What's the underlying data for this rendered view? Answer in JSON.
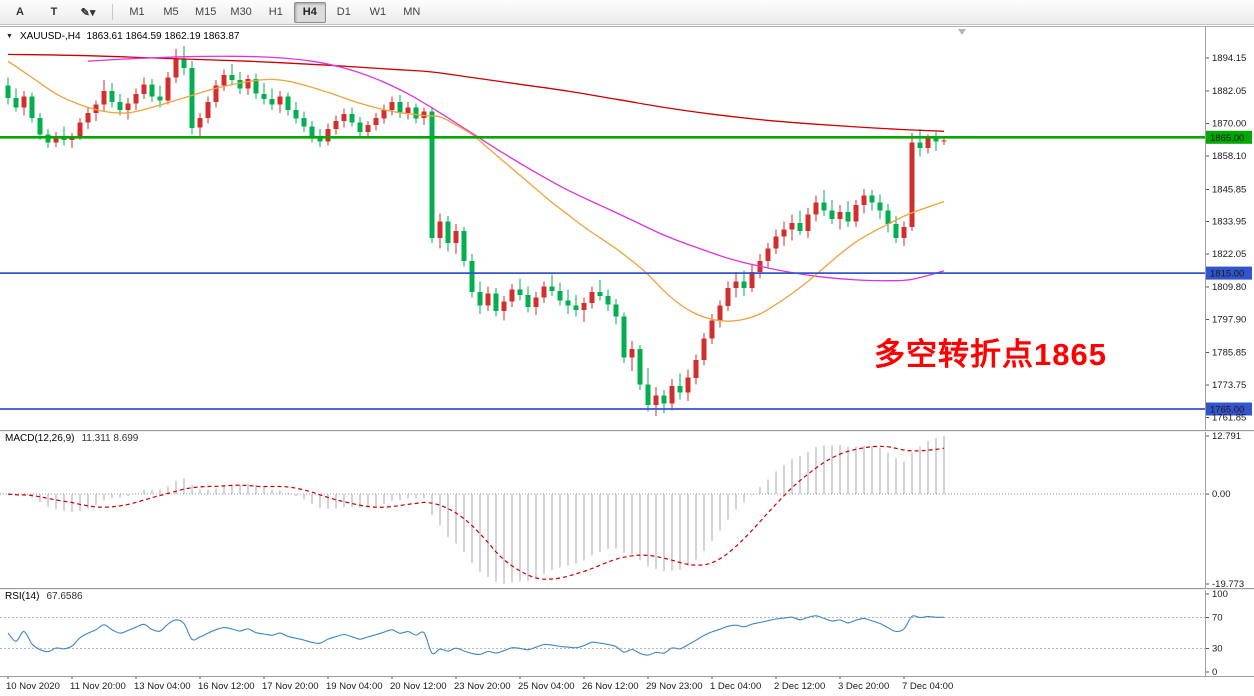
{
  "toolbar": {
    "tool_buttons": [
      {
        "id": "arrow-tool",
        "label": "A"
      },
      {
        "id": "text-tool",
        "label": "T"
      },
      {
        "id": "draw-tool",
        "label": "✎",
        "dropdown": "▾"
      }
    ],
    "timeframes": [
      "M1",
      "M5",
      "M15",
      "M30",
      "H1",
      "H4",
      "D1",
      "W1",
      "MN"
    ],
    "active_timeframe": "H4"
  },
  "header": {
    "collapse_arrow": "▼",
    "symbol": "XAUUSD-,H4",
    "ohlc": "1863.61 1864.59 1862.19 1863.87"
  },
  "annotation": {
    "text": "多空转折点1865",
    "color": "#ff0000"
  },
  "chart_data": {
    "type": "candlestick",
    "symbol": "XAUUSD-",
    "timeframe": "H4",
    "price_axis": {
      "min": 1758,
      "max": 1903,
      "ticks": [
        1894.15,
        1882.05,
        1870.0,
        1858.1,
        1845.85,
        1833.95,
        1822.05,
        1809.8,
        1797.9,
        1785.85,
        1773.75,
        1761.85
      ]
    },
    "hlines": [
      {
        "price": 1865.0,
        "label": "1865.00",
        "color": "#00a800",
        "text_color": "#000000",
        "width": 2.6
      },
      {
        "price": 1815.0,
        "label": "1815.00",
        "color": "#3355cc",
        "text_color": "#ffffff",
        "width": 1.8
      },
      {
        "price": 1765.0,
        "label": "1765.00",
        "color": "#3355cc",
        "text_color": "#ffffff",
        "width": 1.8
      }
    ],
    "candles": [
      [
        1884.0,
        1887.0,
        1877.0,
        1879.5
      ],
      [
        1879.5,
        1883.0,
        1874.5,
        1876.0
      ],
      [
        1876.0,
        1882.0,
        1873.0,
        1880.0
      ],
      [
        1880.0,
        1881.5,
        1870.5,
        1872.0
      ],
      [
        1872.0,
        1874.0,
        1864.0,
        1866.0
      ],
      [
        1866.0,
        1868.0,
        1861.0,
        1863.0
      ],
      [
        1863.0,
        1867.0,
        1861.5,
        1865.0
      ],
      [
        1865.0,
        1869.0,
        1862.0,
        1864.0
      ],
      [
        1864.0,
        1866.5,
        1861.0,
        1865.5
      ],
      [
        1865.5,
        1872.0,
        1864.0,
        1870.5
      ],
      [
        1870.5,
        1876.0,
        1868.0,
        1874.0
      ],
      [
        1874.0,
        1878.5,
        1871.0,
        1877.0
      ],
      [
        1877.0,
        1886.0,
        1874.5,
        1882.0
      ],
      [
        1882.0,
        1885.0,
        1876.0,
        1878.0
      ],
      [
        1878.0,
        1881.0,
        1873.0,
        1875.0
      ],
      [
        1875.0,
        1879.5,
        1871.5,
        1877.5
      ],
      [
        1877.5,
        1883.0,
        1875.0,
        1881.0
      ],
      [
        1881.0,
        1887.0,
        1879.0,
        1884.5
      ],
      [
        1884.5,
        1886.5,
        1878.0,
        1880.0
      ],
      [
        1880.0,
        1884.0,
        1876.0,
        1878.5
      ],
      [
        1878.5,
        1889.0,
        1877.0,
        1887.0
      ],
      [
        1887.0,
        1897.5,
        1885.0,
        1894.0
      ],
      [
        1894.0,
        1898.5,
        1888.0,
        1890.5
      ],
      [
        1890.5,
        1893.0,
        1866.0,
        1868.5
      ],
      [
        1868.5,
        1874.0,
        1864.5,
        1872.0
      ],
      [
        1872.0,
        1880.0,
        1870.0,
        1878.0
      ],
      [
        1878.0,
        1886.0,
        1876.0,
        1884.0
      ],
      [
        1884.0,
        1890.0,
        1882.0,
        1888.0
      ],
      [
        1888.0,
        1892.0,
        1884.0,
        1886.0
      ],
      [
        1886.0,
        1889.0,
        1881.0,
        1883.0
      ],
      [
        1883.0,
        1888.0,
        1880.5,
        1886.5
      ],
      [
        1886.5,
        1888.5,
        1879.0,
        1881.0
      ],
      [
        1881.0,
        1885.0,
        1877.0,
        1879.0
      ],
      [
        1879.0,
        1883.0,
        1875.0,
        1877.0
      ],
      [
        1877.0,
        1882.0,
        1874.0,
        1880.0
      ],
      [
        1880.0,
        1881.5,
        1873.0,
        1875.0
      ],
      [
        1875.0,
        1878.0,
        1870.0,
        1872.0
      ],
      [
        1872.0,
        1874.5,
        1867.0,
        1869.0
      ],
      [
        1869.0,
        1871.0,
        1863.0,
        1865.0
      ],
      [
        1865.0,
        1868.0,
        1861.5,
        1863.5
      ],
      [
        1863.5,
        1870.0,
        1862.0,
        1868.0
      ],
      [
        1868.0,
        1873.0,
        1866.0,
        1871.0
      ],
      [
        1871.0,
        1875.5,
        1868.5,
        1873.5
      ],
      [
        1873.5,
        1876.0,
        1869.0,
        1870.5
      ],
      [
        1870.5,
        1872.5,
        1864.5,
        1867.0
      ],
      [
        1867.0,
        1871.0,
        1865.0,
        1869.5
      ],
      [
        1869.5,
        1874.0,
        1867.5,
        1872.0
      ],
      [
        1872.0,
        1877.0,
        1870.0,
        1875.0
      ],
      [
        1875.0,
        1880.0,
        1873.0,
        1878.0
      ],
      [
        1878.0,
        1880.5,
        1872.0,
        1874.0
      ],
      [
        1874.0,
        1878.0,
        1871.5,
        1876.0
      ],
      [
        1876.0,
        1877.5,
        1870.0,
        1872.0
      ],
      [
        1872.0,
        1876.0,
        1869.5,
        1874.5
      ],
      [
        1874.5,
        1875.5,
        1826.0,
        1828.0
      ],
      [
        1828.0,
        1837.0,
        1824.0,
        1834.0
      ],
      [
        1834.0,
        1836.0,
        1823.0,
        1826.0
      ],
      [
        1826.0,
        1833.0,
        1822.0,
        1830.5
      ],
      [
        1830.5,
        1832.0,
        1817.5,
        1819.5
      ],
      [
        1819.5,
        1822.0,
        1806.0,
        1808.0
      ],
      [
        1808.0,
        1812.0,
        1800.0,
        1803.0
      ],
      [
        1803.0,
        1810.0,
        1801.0,
        1807.5
      ],
      [
        1807.5,
        1809.5,
        1799.0,
        1801.0
      ],
      [
        1801.0,
        1806.5,
        1797.5,
        1804.5
      ],
      [
        1804.5,
        1811.0,
        1802.5,
        1809.0
      ],
      [
        1809.0,
        1813.0,
        1805.0,
        1807.0
      ],
      [
        1807.0,
        1810.0,
        1800.5,
        1802.5
      ],
      [
        1802.5,
        1808.0,
        1799.5,
        1806.0
      ],
      [
        1806.0,
        1812.0,
        1804.0,
        1810.0
      ],
      [
        1810.0,
        1814.5,
        1806.5,
        1808.5
      ],
      [
        1808.5,
        1811.5,
        1803.0,
        1805.0
      ],
      [
        1805.0,
        1809.0,
        1800.0,
        1803.0
      ],
      [
        1803.0,
        1807.0,
        1799.0,
        1801.5
      ],
      [
        1801.5,
        1806.0,
        1797.0,
        1804.0
      ],
      [
        1804.0,
        1810.0,
        1802.0,
        1808.0
      ],
      [
        1808.0,
        1812.5,
        1805.0,
        1806.5
      ],
      [
        1806.5,
        1809.0,
        1801.0,
        1803.5
      ],
      [
        1803.5,
        1805.5,
        1796.0,
        1799.0
      ],
      [
        1799.0,
        1800.5,
        1782.0,
        1784.0
      ],
      [
        1784.0,
        1790.0,
        1779.0,
        1787.0
      ],
      [
        1787.0,
        1788.5,
        1772.0,
        1774.0
      ],
      [
        1774.0,
        1780.0,
        1764.0,
        1766.5
      ],
      [
        1766.5,
        1773.0,
        1762.5,
        1770.0
      ],
      [
        1770.0,
        1772.0,
        1763.5,
        1767.0
      ],
      [
        1767.0,
        1776.0,
        1764.5,
        1773.5
      ],
      [
        1773.5,
        1778.0,
        1768.5,
        1771.0
      ],
      [
        1771.0,
        1779.5,
        1768.0,
        1776.5
      ],
      [
        1776.5,
        1785.0,
        1774.0,
        1783.0
      ],
      [
        1783.0,
        1793.0,
        1781.0,
        1791.0
      ],
      [
        1791.0,
        1800.0,
        1789.0,
        1797.5
      ],
      [
        1797.5,
        1805.0,
        1795.0,
        1803.0
      ],
      [
        1803.0,
        1812.0,
        1801.0,
        1809.5
      ],
      [
        1809.5,
        1815.5,
        1806.0,
        1812.0
      ],
      [
        1812.0,
        1816.0,
        1806.5,
        1809.5
      ],
      [
        1809.5,
        1818.0,
        1808.0,
        1815.5
      ],
      [
        1815.5,
        1822.0,
        1813.0,
        1819.5
      ],
      [
        1819.5,
        1826.0,
        1817.0,
        1824.0
      ],
      [
        1824.0,
        1831.0,
        1822.0,
        1828.5
      ],
      [
        1828.5,
        1834.0,
        1825.0,
        1831.0
      ],
      [
        1831.0,
        1836.5,
        1827.0,
        1833.5
      ],
      [
        1833.5,
        1838.0,
        1829.0,
        1830.5
      ],
      [
        1830.5,
        1839.0,
        1828.0,
        1836.5
      ],
      [
        1836.5,
        1843.5,
        1834.0,
        1841.0
      ],
      [
        1841.0,
        1845.5,
        1836.0,
        1838.0
      ],
      [
        1838.0,
        1842.0,
        1833.0,
        1835.0
      ],
      [
        1835.0,
        1840.0,
        1831.0,
        1837.5
      ],
      [
        1837.5,
        1841.5,
        1832.0,
        1834.0
      ],
      [
        1834.0,
        1842.0,
        1832.0,
        1840.0
      ],
      [
        1840.0,
        1846.0,
        1837.0,
        1843.5
      ],
      [
        1843.5,
        1845.5,
        1838.0,
        1841.0
      ],
      [
        1841.0,
        1844.0,
        1835.0,
        1838.0
      ],
      [
        1838.0,
        1840.5,
        1830.0,
        1833.0
      ],
      [
        1833.0,
        1836.0,
        1826.0,
        1828.0
      ],
      [
        1828.0,
        1834.0,
        1825.0,
        1832.0
      ],
      [
        1832.0,
        1866.5,
        1830.5,
        1863.0
      ],
      [
        1863.0,
        1868.0,
        1858.0,
        1861.0
      ],
      [
        1861.0,
        1866.0,
        1859.0,
        1864.5
      ],
      [
        1864.5,
        1867.0,
        1860.0,
        1863.5
      ],
      [
        1863.61,
        1864.59,
        1862.19,
        1863.87
      ]
    ],
    "moving_averages": [
      {
        "name": "ma-slow",
        "color": "#cc0000",
        "points": [
          [
            0,
            1895.5
          ],
          [
            10,
            1895
          ],
          [
            20,
            1894
          ],
          [
            30,
            1893
          ],
          [
            40,
            1891.5
          ],
          [
            48,
            1890
          ],
          [
            53,
            1889
          ],
          [
            58,
            1887
          ],
          [
            64,
            1884.5
          ],
          [
            70,
            1882
          ],
          [
            76,
            1879
          ],
          [
            82,
            1876
          ],
          [
            88,
            1873.5
          ],
          [
            94,
            1871.5
          ],
          [
            100,
            1870
          ],
          [
            106,
            1868.8
          ],
          [
            112,
            1867.8
          ],
          [
            117,
            1867.2
          ]
        ]
      },
      {
        "name": "ma-mid",
        "color": "#dd33dd",
        "points": [
          [
            10,
            1893
          ],
          [
            16,
            1894
          ],
          [
            22,
            1894.6
          ],
          [
            28,
            1894.8
          ],
          [
            33,
            1894.4
          ],
          [
            38,
            1893
          ],
          [
            42,
            1890.5
          ],
          [
            46,
            1886.5
          ],
          [
            50,
            1881
          ],
          [
            54,
            1874
          ],
          [
            58,
            1866.5
          ],
          [
            62,
            1859
          ],
          [
            66,
            1852
          ],
          [
            70,
            1845.5
          ],
          [
            74,
            1840
          ],
          [
            78,
            1834.5
          ],
          [
            82,
            1829
          ],
          [
            86,
            1824.5
          ],
          [
            90,
            1820.5
          ],
          [
            94,
            1817.5
          ],
          [
            98,
            1815.2
          ],
          [
            102,
            1813.5
          ],
          [
            106,
            1812.5
          ],
          [
            110,
            1812.2
          ],
          [
            113,
            1812.7
          ],
          [
            117,
            1815.8
          ]
        ]
      },
      {
        "name": "ma-fast",
        "color": "#efa33a",
        "points": [
          [
            0,
            1893
          ],
          [
            3,
            1887
          ],
          [
            6,
            1881
          ],
          [
            9,
            1877
          ],
          [
            12,
            1874.5
          ],
          [
            15,
            1874
          ],
          [
            18,
            1876
          ],
          [
            22,
            1879.5
          ],
          [
            26,
            1883
          ],
          [
            30,
            1885.5
          ],
          [
            33,
            1886.3
          ],
          [
            36,
            1885
          ],
          [
            40,
            1881.5
          ],
          [
            44,
            1877.5
          ],
          [
            48,
            1874.5
          ],
          [
            52,
            1873
          ],
          [
            54,
            1872.5
          ],
          [
            56,
            1869.5
          ],
          [
            58,
            1866
          ],
          [
            60,
            1861
          ],
          [
            62,
            1856
          ],
          [
            64,
            1851
          ],
          [
            66,
            1846
          ],
          [
            68,
            1841
          ],
          [
            70,
            1836.5
          ],
          [
            72,
            1832
          ],
          [
            74,
            1828
          ],
          [
            76,
            1824
          ],
          [
            78,
            1819.5
          ],
          [
            80,
            1814.5
          ],
          [
            82,
            1808.5
          ],
          [
            84,
            1803.5
          ],
          [
            86,
            1800
          ],
          [
            88,
            1798
          ],
          [
            90,
            1797.3
          ],
          [
            92,
            1798
          ],
          [
            94,
            1800
          ],
          [
            96,
            1803.5
          ],
          [
            98,
            1807.5
          ],
          [
            100,
            1812
          ],
          [
            102,
            1817
          ],
          [
            104,
            1822
          ],
          [
            106,
            1826.5
          ],
          [
            108,
            1830
          ],
          [
            110,
            1833
          ],
          [
            112,
            1836
          ],
          [
            114,
            1838.3
          ],
          [
            116,
            1840.3
          ],
          [
            117,
            1841.3
          ]
        ]
      }
    ],
    "indicators": {
      "macd": {
        "title": "MACD(12,26,9)",
        "values": "11.311 8.699",
        "fast": 12,
        "slow": 26,
        "signal": 9,
        "axis_ticks": [
          "12.791",
          "0.00",
          "-19.773"
        ],
        "hist_color": "#a8a8a8",
        "signal_color": "#cc0000"
      },
      "rsi": {
        "title": "RSI(14)",
        "values": "67.6586",
        "period": 14,
        "axis_ticks": [
          "100",
          "70",
          "30",
          "0"
        ],
        "levels": [
          70,
          30
        ],
        "color": "#3a87c8"
      }
    },
    "time_axis": {
      "step_candles": 8,
      "labels": [
        "10 Nov 2020",
        "11 Nov 20:00",
        "13 Nov 04:00",
        "16 Nov 12:00",
        "17 Nov 20:00",
        "19 Nov 04:00",
        "20 Nov 12:00",
        "23 Nov 20:00",
        "25 Nov 04:00",
        "26 Nov 12:00",
        "29 Nov 23:00",
        "1 Dec 04:00",
        "2 Dec 12:00",
        "3 Dec 20:00",
        "7 Dec 04:00"
      ]
    },
    "colors": {
      "up": "#d22e2e",
      "down": "#00b050",
      "background": "#ffffff",
      "border": "#a0a0a0",
      "text": "#1a1a1a"
    }
  }
}
